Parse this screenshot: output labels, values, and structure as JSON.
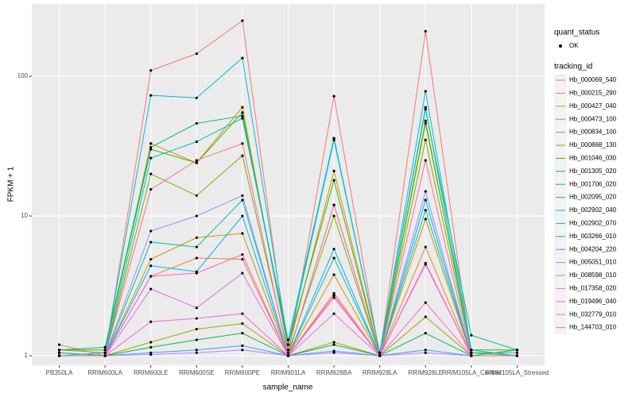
{
  "chart_data": {
    "type": "line",
    "x_label": "sample_name",
    "y_label": "FPKM + 1",
    "log_y": true,
    "grid": true,
    "categories": [
      "PB350LA",
      "RRIM600LA",
      "RRIM600LE",
      "RRIM600SE",
      "RRIM600PE",
      "RRIM901LA",
      "RRIM928BA",
      "RRIM928LA",
      "RRIM928LE",
      "RRIM105LA_Control",
      "RRIM105LA_Stressed"
    ],
    "ylim": [
      0.855,
      329
    ],
    "yticks": [
      1,
      10,
      100
    ],
    "point_legend_title": "quant_status",
    "point_legend_label": "OK",
    "legend_title": "tracking_id",
    "series": [
      {
        "name": "Hb_000069_540",
        "color": "#F8766D",
        "values": [
          1.2,
          1.0,
          110,
          145,
          250,
          1.0,
          72,
          1.0,
          210,
          1.0,
          1.0
        ]
      },
      {
        "name": "Hb_000215_290",
        "color": "#EA8331",
        "values": [
          1.05,
          1.0,
          3.7,
          5.0,
          4.9,
          1.0,
          2.8,
          1.0,
          6.0,
          1.0,
          1.0
        ]
      },
      {
        "name": "Hb_000427_040",
        "color": "#D89000",
        "values": [
          1.1,
          1.05,
          33,
          24,
          60,
          1.1,
          21,
          1.0,
          48,
          1.05,
          1.0
        ]
      },
      {
        "name": "Hb_000473_100",
        "color": "#C09B00",
        "values": [
          1.0,
          1.0,
          4.9,
          7.0,
          7.5,
          1.0,
          3.8,
          1.0,
          9.5,
          1.0,
          1.0
        ]
      },
      {
        "name": "Hb_000834_100",
        "color": "#A3A500",
        "values": [
          1.0,
          1.0,
          1.25,
          1.55,
          1.7,
          1.0,
          1.25,
          1.0,
          1.9,
          1.0,
          1.0
        ]
      },
      {
        "name": "Hb_000868_130",
        "color": "#7CAE00",
        "values": [
          1.05,
          1.0,
          20,
          14,
          27,
          1.05,
          10,
          1.0,
          35,
          1.05,
          1.0
        ]
      },
      {
        "name": "Hb_001046_030",
        "color": "#39B600",
        "values": [
          1.1,
          1.1,
          30,
          24,
          55,
          1.2,
          18,
          1.0,
          46,
          1.1,
          1.1
        ]
      },
      {
        "name": "Hb_001305_020",
        "color": "#00BB4E",
        "values": [
          1.0,
          1.0,
          1.15,
          1.3,
          1.45,
          1.0,
          1.2,
          1.0,
          1.45,
          1.0,
          1.1
        ]
      },
      {
        "name": "Hb_001706_020",
        "color": "#00BF7D",
        "values": [
          1.1,
          1.15,
          31,
          46,
          52,
          1.2,
          36,
          1.05,
          58,
          1.4,
          1.1
        ]
      },
      {
        "name": "Hb_002095_020",
        "color": "#00C1A3",
        "values": [
          1.0,
          1.0,
          6.5,
          6.0,
          13,
          1.0,
          5.0,
          1.0,
          11,
          1.0,
          1.0
        ]
      },
      {
        "name": "Hb_002902_040",
        "color": "#00BFC4",
        "values": [
          1.05,
          1.0,
          26,
          34,
          50,
          1.3,
          36,
          1.05,
          60,
          1.05,
          1.05
        ]
      },
      {
        "name": "Hb_002902_070",
        "color": "#00BAE0",
        "values": [
          1.0,
          1.05,
          73,
          70,
          135,
          1.2,
          35,
          1.05,
          78,
          1.1,
          1.0
        ]
      },
      {
        "name": "Hb_003266_010",
        "color": "#00B0F6",
        "values": [
          1.0,
          1.0,
          4.4,
          4.0,
          10,
          1.0,
          5.8,
          1.0,
          13,
          1.0,
          1.0
        ]
      },
      {
        "name": "Hb_004204_220",
        "color": "#35A2FF",
        "values": [
          1.0,
          1.0,
          1.05,
          1.1,
          1.18,
          1.0,
          1.08,
          1.0,
          1.1,
          1.0,
          1.0
        ]
      },
      {
        "name": "Hb_005051_010",
        "color": "#9590FF",
        "values": [
          1.0,
          1.0,
          7.8,
          10,
          14,
          1.0,
          12,
          1.0,
          15,
          1.0,
          1.0
        ]
      },
      {
        "name": "Hb_008598_010",
        "color": "#C77CFF",
        "values": [
          1.0,
          1.0,
          1.02,
          1.05,
          1.1,
          1.0,
          1.05,
          1.0,
          1.05,
          1.0,
          1.0
        ]
      },
      {
        "name": "Hb_017358_020",
        "color": "#E76BF3",
        "values": [
          1.0,
          1.0,
          3.0,
          2.2,
          3.9,
          1.0,
          2.0,
          1.0,
          4.5,
          1.0,
          1.0
        ]
      },
      {
        "name": "Hb_019496_040",
        "color": "#FA62DB",
        "values": [
          1.0,
          1.0,
          1.75,
          1.85,
          2.0,
          1.0,
          2.6,
          1.0,
          2.4,
          1.0,
          1.0
        ]
      },
      {
        "name": "Hb_032779_010",
        "color": "#FF62BC",
        "values": [
          1.0,
          1.0,
          3.7,
          3.9,
          5.3,
          1.0,
          2.7,
          1.0,
          4.6,
          1.0,
          1.0
        ]
      },
      {
        "name": "Hb_144703_010",
        "color": "#FF6C91",
        "values": [
          1.0,
          1.0,
          15.5,
          25,
          33,
          1.0,
          12,
          1.0,
          25,
          1.0,
          1.0
        ]
      }
    ]
  }
}
